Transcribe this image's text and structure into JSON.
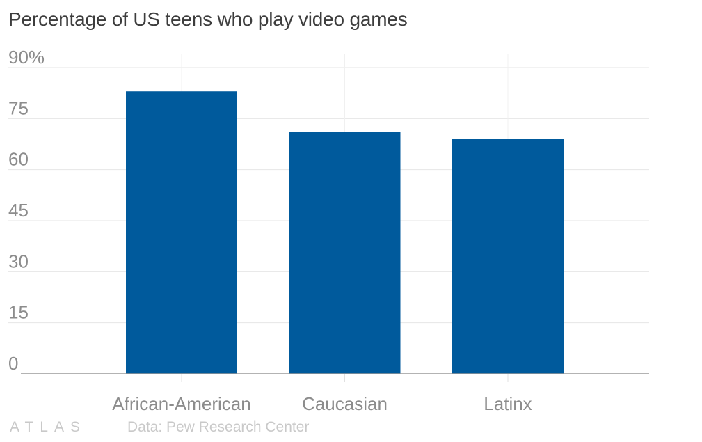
{
  "chart_data": {
    "type": "bar",
    "title": "Percentage of US teens who play video games",
    "categories": [
      "African-American",
      "Caucasian",
      "Latinx"
    ],
    "values": [
      83,
      71,
      69
    ],
    "ylim": [
      0,
      90
    ],
    "yticks": [
      0,
      15,
      30,
      45,
      60,
      75,
      90
    ],
    "ytick_labels": [
      "0",
      "15",
      "30",
      "45",
      "60",
      "75",
      "90%"
    ],
    "xlabel": "",
    "ylabel": "",
    "grid": true,
    "bar_color": "#005a9c",
    "grid_color": "#e6e6e6",
    "axis_text_color": "#8c8c8c"
  },
  "footer": {
    "logo": "ATLAS",
    "source": "Data: Pew Research Center"
  }
}
